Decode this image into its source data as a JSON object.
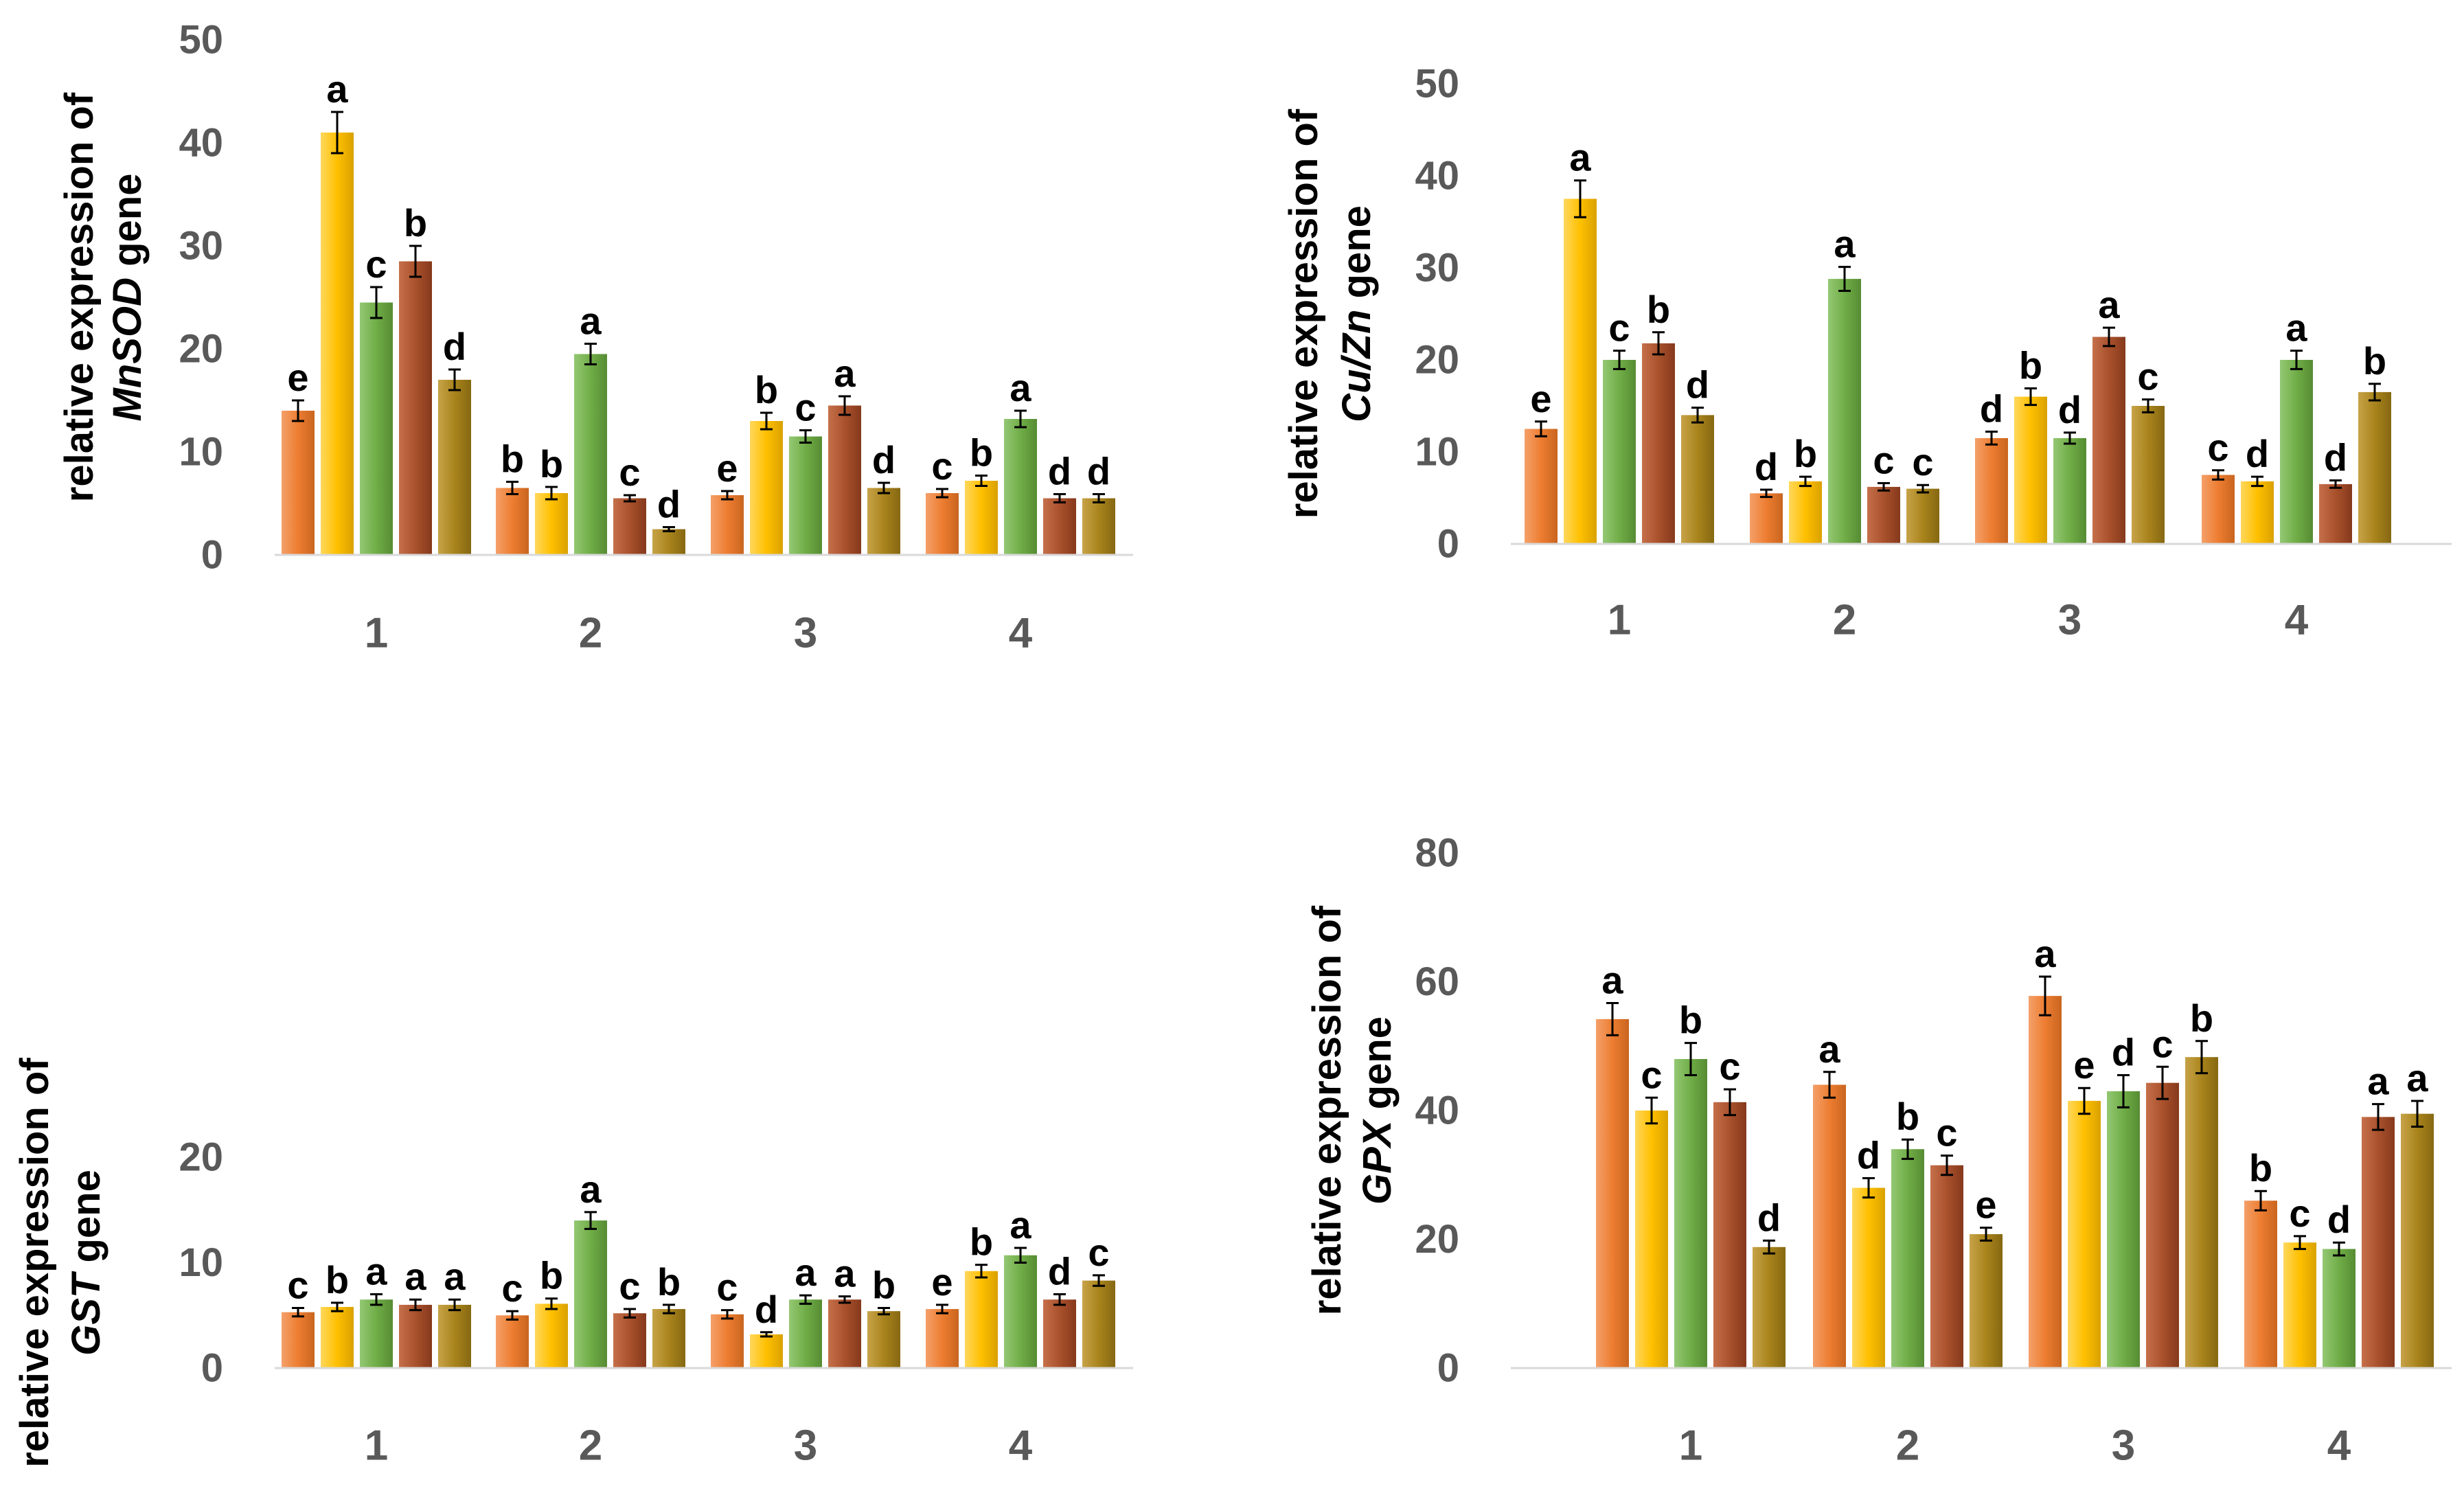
{
  "palette": [
    "#ED7D31",
    "#FFC000",
    "#70AD47",
    "#A9512C",
    "#A9841C"
  ],
  "chart_data": [
    {
      "type": "bar",
      "id": "mnsod",
      "ylabel_line1": "relative expression of",
      "ylabel_line2_italic": "MnSOD",
      "ylabel_line2_rest": " gene",
      "ylim": [
        0,
        50
      ],
      "yticks": [
        "0",
        "10",
        "20",
        "30",
        "40",
        "50"
      ],
      "categories": [
        "1",
        "2",
        "3",
        "4"
      ],
      "values": [
        [
          14,
          41,
          24.5,
          28.5,
          17
        ],
        [
          6.5,
          6,
          19.5,
          5.5,
          2.5
        ],
        [
          5.8,
          13,
          11.5,
          14.5,
          6.5
        ],
        [
          6,
          7.2,
          13.2,
          5.5,
          5.5
        ]
      ],
      "errors": [
        [
          1,
          2,
          1.5,
          1.5,
          1
        ],
        [
          0.6,
          0.6,
          1,
          0.3,
          0.2
        ],
        [
          0.4,
          0.8,
          0.6,
          0.9,
          0.5
        ],
        [
          0.4,
          0.5,
          0.8,
          0.4,
          0.4
        ]
      ],
      "letters": [
        [
          "e",
          "a",
          "c",
          "b",
          "d"
        ],
        [
          "b",
          "b",
          "a",
          "c",
          "d"
        ],
        [
          "e",
          "b",
          "c",
          "a",
          "d"
        ],
        [
          "c",
          "b",
          "a",
          "d",
          "d"
        ]
      ]
    },
    {
      "type": "bar",
      "id": "cuzn",
      "ylabel_line1": "relative expression of",
      "ylabel_line2_italic": "Cu/Zn",
      "ylabel_line2_rest": " gene",
      "ylim": [
        0,
        50
      ],
      "yticks": [
        "0",
        "10",
        "20",
        "30",
        "40",
        "50"
      ],
      "categories": [
        "1",
        "2",
        "3",
        "4"
      ],
      "values": [
        [
          12.5,
          37.5,
          20,
          21.8,
          14
        ],
        [
          5.5,
          6.8,
          28.8,
          6.2,
          6
        ],
        [
          11.5,
          16,
          11.5,
          22.5,
          15
        ],
        [
          7.5,
          6.8,
          20,
          6.5,
          16.5
        ]
      ],
      "errors": [
        [
          0.8,
          2,
          1,
          1.2,
          0.8
        ],
        [
          0.4,
          0.5,
          1.3,
          0.4,
          0.4
        ],
        [
          0.7,
          0.9,
          0.6,
          1,
          0.7
        ],
        [
          0.5,
          0.5,
          1,
          0.4,
          0.9
        ]
      ],
      "letters": [
        [
          "e",
          "a",
          "c",
          "b",
          "d"
        ],
        [
          "d",
          "b",
          "a",
          "c",
          "c"
        ],
        [
          "d",
          "b",
          "d",
          "a",
          "c"
        ],
        [
          "c",
          "d",
          "a",
          "d",
          "b"
        ]
      ]
    },
    {
      "type": "bar",
      "id": "gst",
      "ylabel_line1": "relative expression of",
      "ylabel_line2_italic": "GST",
      "ylabel_line2_rest": " gene",
      "ylim": [
        0,
        20
      ],
      "yticks": [
        "0",
        "10",
        "20"
      ],
      "categories": [
        "1",
        "2",
        "3",
        "4"
      ],
      "values": [
        [
          5.3,
          5.8,
          6.5,
          6,
          6
        ],
        [
          5,
          6.1,
          14,
          5.2,
          5.6
        ],
        [
          5.1,
          3.2,
          6.5,
          6.5,
          5.4
        ],
        [
          5.6,
          9.2,
          10.7,
          6.5,
          8.3
        ]
      ],
      "errors": [
        [
          0.4,
          0.4,
          0.5,
          0.5,
          0.5
        ],
        [
          0.4,
          0.5,
          0.8,
          0.4,
          0.4
        ],
        [
          0.4,
          0.2,
          0.4,
          0.3,
          0.3
        ],
        [
          0.4,
          0.6,
          0.7,
          0.5,
          0.5
        ]
      ],
      "letters": [
        [
          "c",
          "b",
          "a",
          "a",
          "a"
        ],
        [
          "c",
          "b",
          "a",
          "c",
          "b"
        ],
        [
          "c",
          "d",
          "a",
          "a",
          "b"
        ],
        [
          "e",
          "b",
          "a",
          "d",
          "c"
        ]
      ]
    },
    {
      "type": "bar",
      "id": "gpx",
      "ylabel_line1": "relative expression of",
      "ylabel_line2_italic": "GPX",
      "ylabel_line2_rest": " gene",
      "ylim": [
        0,
        80
      ],
      "yticks": [
        "0",
        "20",
        "40",
        "60",
        "80"
      ],
      "categories": [
        "1",
        "2",
        "3",
        "4"
      ],
      "values": [
        [
          54.2,
          40,
          48,
          41.3,
          18.8
        ],
        [
          44,
          28,
          34,
          31.5,
          20.8
        ],
        [
          57.8,
          41.5,
          43,
          44.3,
          48.3
        ],
        [
          26,
          19.5,
          18.5,
          39,
          39.5
        ]
      ],
      "errors": [
        [
          2.5,
          2,
          2.5,
          2,
          1
        ],
        [
          2,
          1.5,
          1.5,
          1.5,
          1
        ],
        [
          3,
          2,
          2.5,
          2.5,
          2.5
        ],
        [
          1.5,
          1,
          1,
          2,
          2
        ]
      ],
      "letters": [
        [
          "a",
          "c",
          "b",
          "c",
          "d"
        ],
        [
          "a",
          "d",
          "b",
          "c",
          "e"
        ],
        [
          "a",
          "e",
          "d",
          "c",
          "b"
        ],
        [
          "b",
          "c",
          "d",
          "a",
          "a"
        ]
      ]
    }
  ]
}
